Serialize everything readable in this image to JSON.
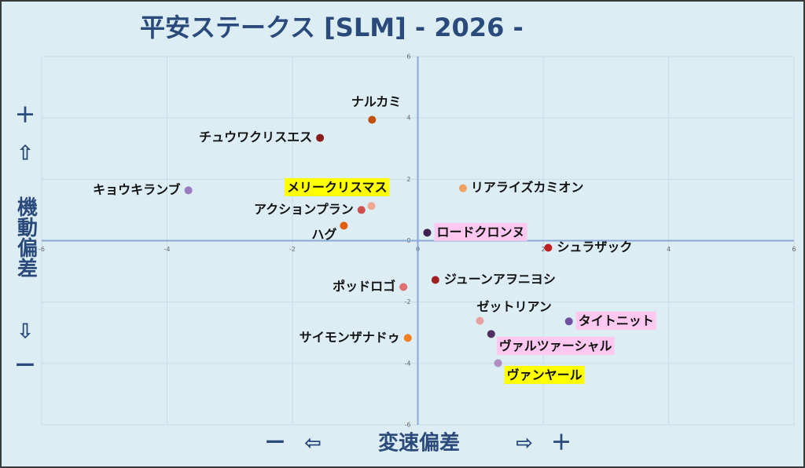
{
  "chart_data": {
    "type": "scatter",
    "title": "平安ステークス [SLM]  - 2026 -",
    "x_axis": {
      "minus": "ー",
      "left_arrow": "⇦",
      "label": "変速偏差",
      "right_arrow": "⇨",
      "plus": "＋"
    },
    "y_axis": {
      "plus": "＋",
      "up_arrow": "⇧",
      "label": "機動偏差",
      "down_arrow": "⇩",
      "minus": "ー"
    },
    "xlim": [
      -6,
      6
    ],
    "ylim": [
      -6,
      6
    ],
    "xticks": [
      -6,
      -4,
      -2,
      0,
      2,
      4,
      6
    ],
    "yticks": [
      -6,
      -4,
      -2,
      0,
      2,
      4,
      6
    ],
    "grid": true,
    "labels": [
      "ナルカミ",
      "チュウワクリスエス",
      "キョウキランブ",
      "メリークリスマス",
      "アクションプラン",
      "ハグ",
      "リアライズカミオン",
      "ロードクロンヌ",
      "シュラザック",
      "ポッドロゴ",
      "ジューンアヲニヨシ",
      "ゼットリアン",
      "タイトニット",
      "ヴァルツァーシャル",
      "サイモンザナドゥ",
      "ヴァンヤール"
    ],
    "x": [
      -0.73,
      -1.56,
      -3.66,
      -0.74,
      -0.9,
      -1.18,
      0.72,
      0.15,
      2.08,
      -0.23,
      0.28,
      0.99,
      2.41,
      1.17,
      -0.16,
      1.28
    ],
    "values": [
      3.94,
      3.35,
      1.64,
      1.13,
      1.0,
      0.49,
      1.71,
      0.26,
      -0.23,
      -1.51,
      -1.28,
      -2.61,
      -2.63,
      -3.04,
      -3.17,
      -3.99
    ],
    "colors": [
      "#c0500a",
      "#8b1a1a",
      "#9a7bc0",
      "#f0a890",
      "#d05050",
      "#e06010",
      "#f0a060",
      "#402050",
      "#c02020",
      "#e07070",
      "#a02020",
      "#e8a0a0",
      "#7050a0",
      "#503060",
      "#f08020",
      "#b090c0"
    ],
    "label_colors": [
      null,
      null,
      null,
      "#ffff00",
      null,
      null,
      null,
      "#ffc8f0",
      null,
      null,
      null,
      null,
      "#ffc8f0",
      "#ffc8f0",
      null,
      "#ffff00"
    ]
  }
}
